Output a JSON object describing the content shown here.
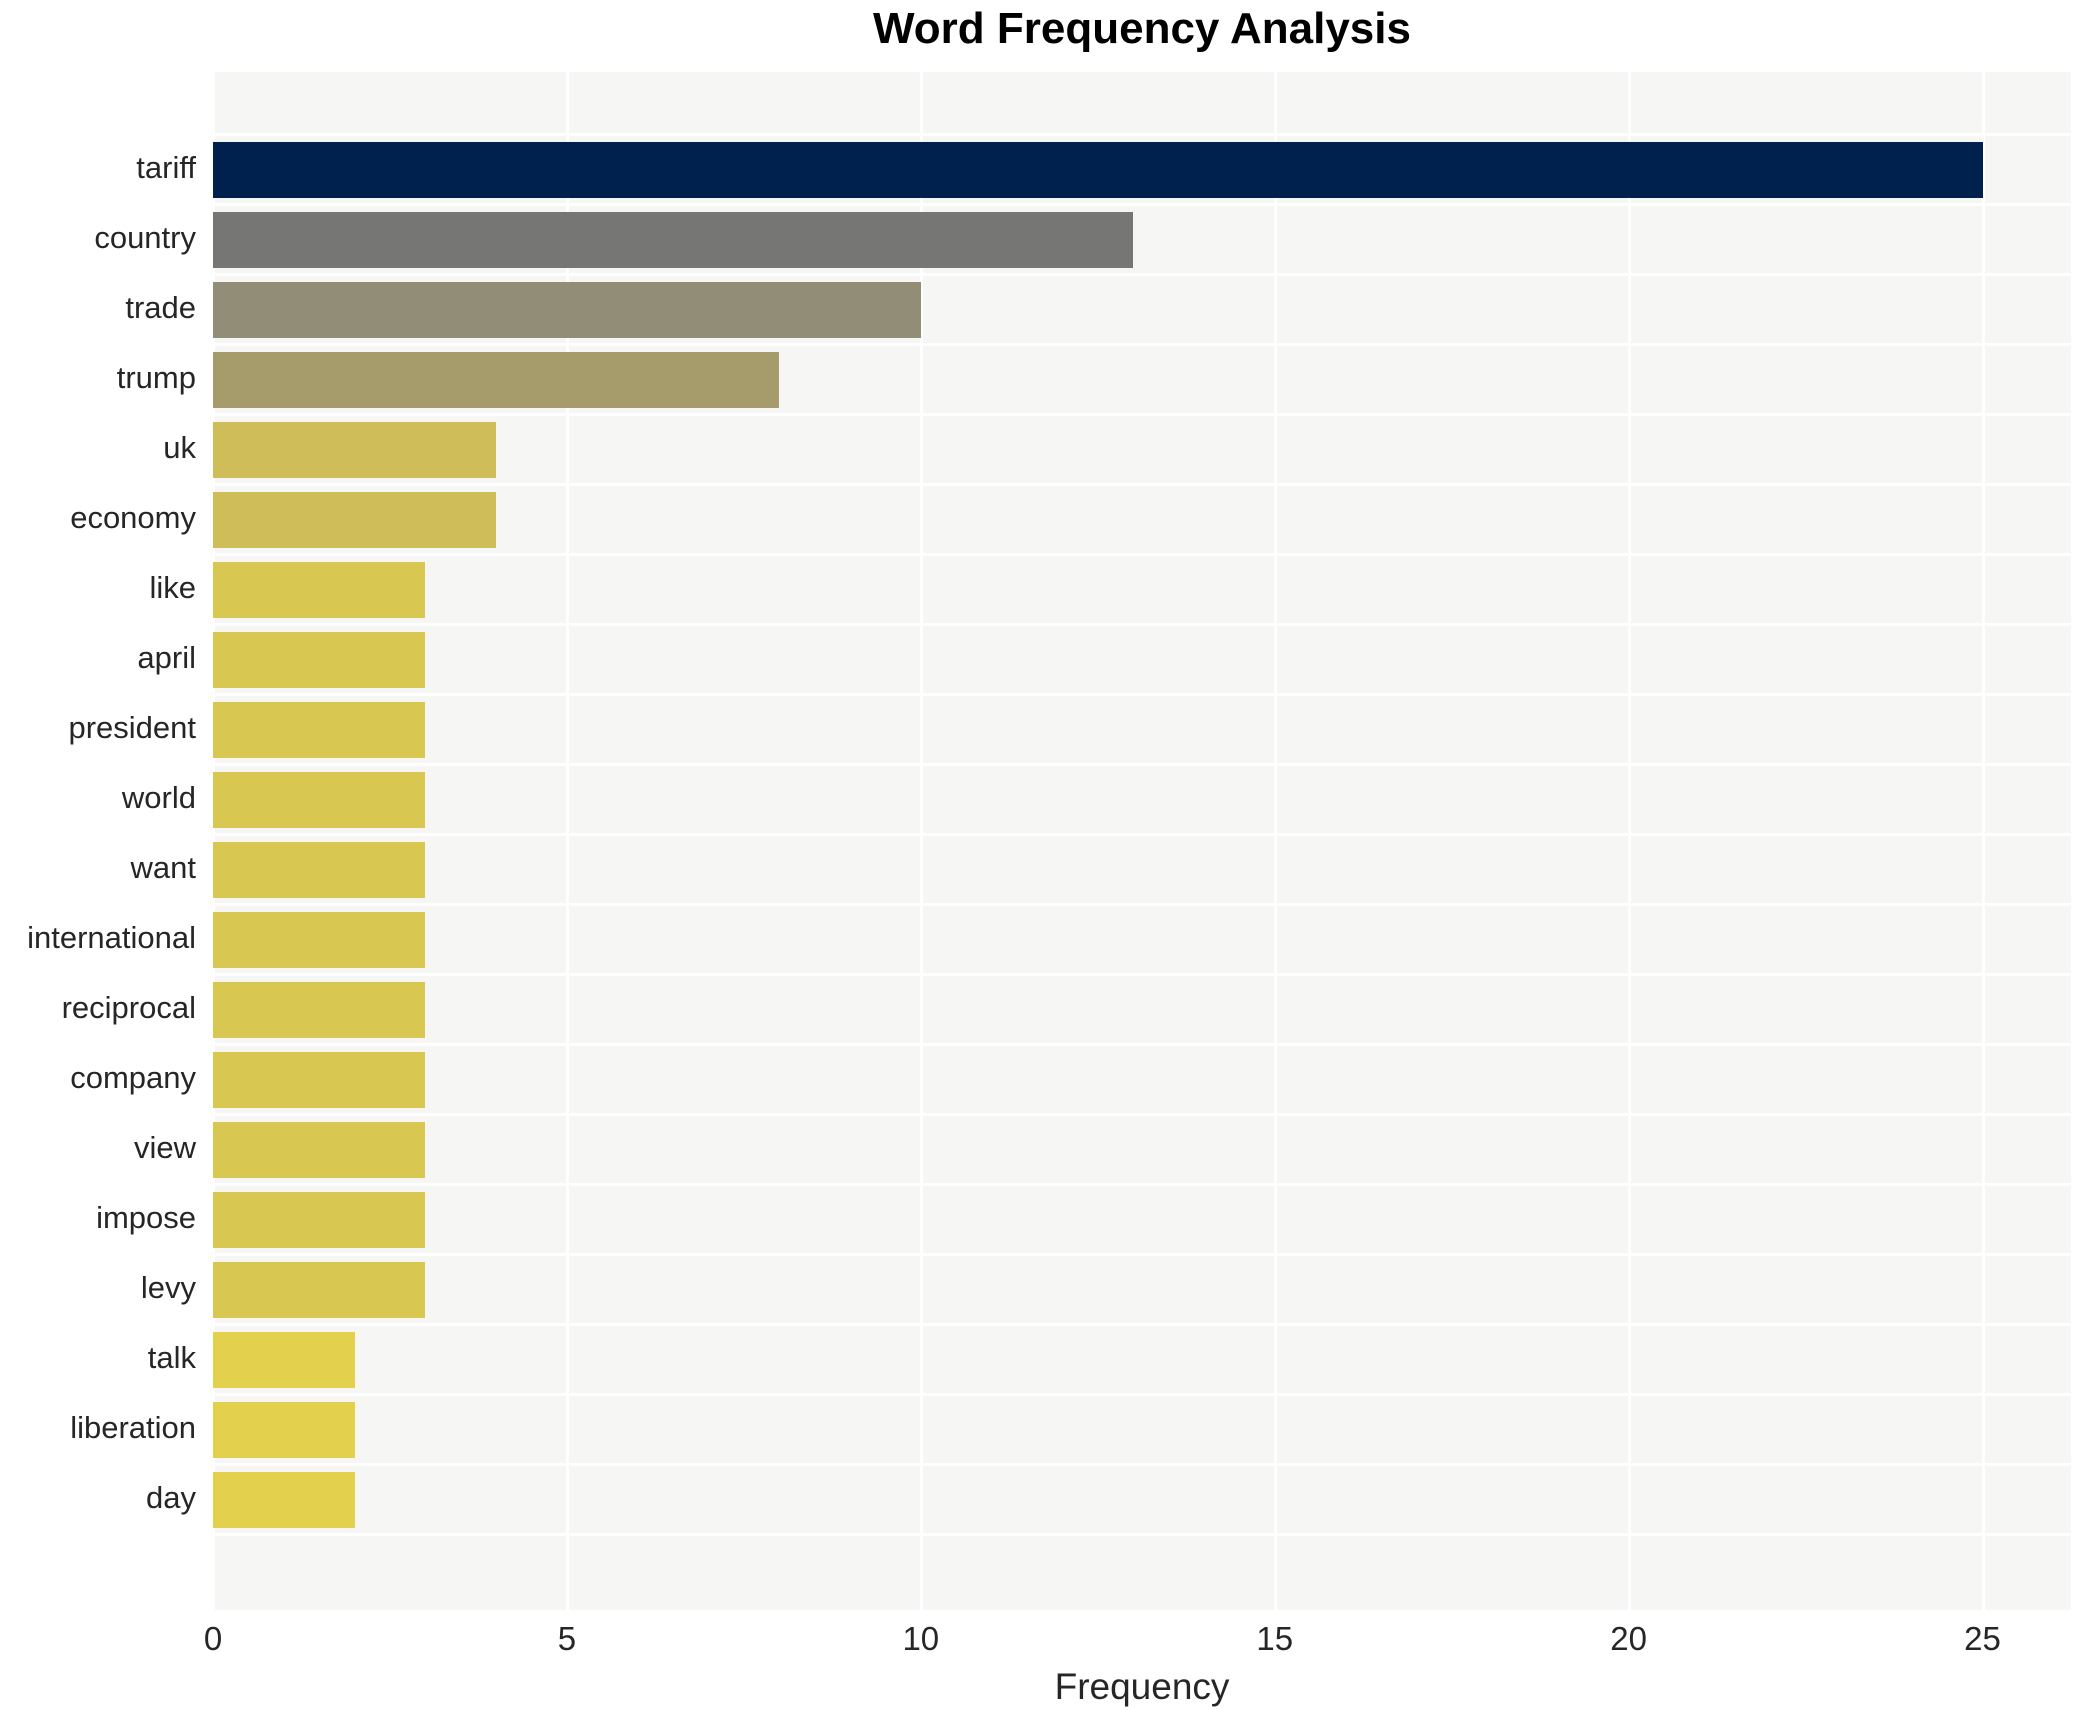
{
  "title": "Word Frequency Analysis",
  "chart_data": {
    "type": "bar",
    "orientation": "horizontal",
    "title": "Word Frequency Analysis",
    "xlabel": "Frequency",
    "ylabel": "",
    "categories": [
      "tariff",
      "country",
      "trade",
      "trump",
      "uk",
      "economy",
      "like",
      "april",
      "president",
      "world",
      "want",
      "international",
      "reciprocal",
      "company",
      "view",
      "impose",
      "levy",
      "talk",
      "liberation",
      "day"
    ],
    "values": [
      25,
      13,
      10,
      8,
      4,
      4,
      3,
      3,
      3,
      3,
      3,
      3,
      3,
      3,
      3,
      3,
      3,
      2,
      2,
      2
    ],
    "bar_colors": [
      "#00204e",
      "#767675",
      "#918d76",
      "#a69c6b",
      "#cfbd5a",
      "#cfbd5a",
      "#d8c750",
      "#d8c750",
      "#d8c750",
      "#d8c750",
      "#d8c750",
      "#d8c750",
      "#d8c750",
      "#d8c750",
      "#d8c750",
      "#d8c750",
      "#d8c750",
      "#e3d14d",
      "#e3d14d",
      "#e3d14d"
    ],
    "xticks": [
      0,
      5,
      10,
      15,
      20,
      25
    ],
    "xlim": [
      0,
      26.25
    ],
    "grid": true,
    "legend": "none",
    "plot_bg": "#f6f6f5",
    "grid_color": "#ffffff",
    "text_color": "#262626",
    "title_color": "#000000"
  }
}
